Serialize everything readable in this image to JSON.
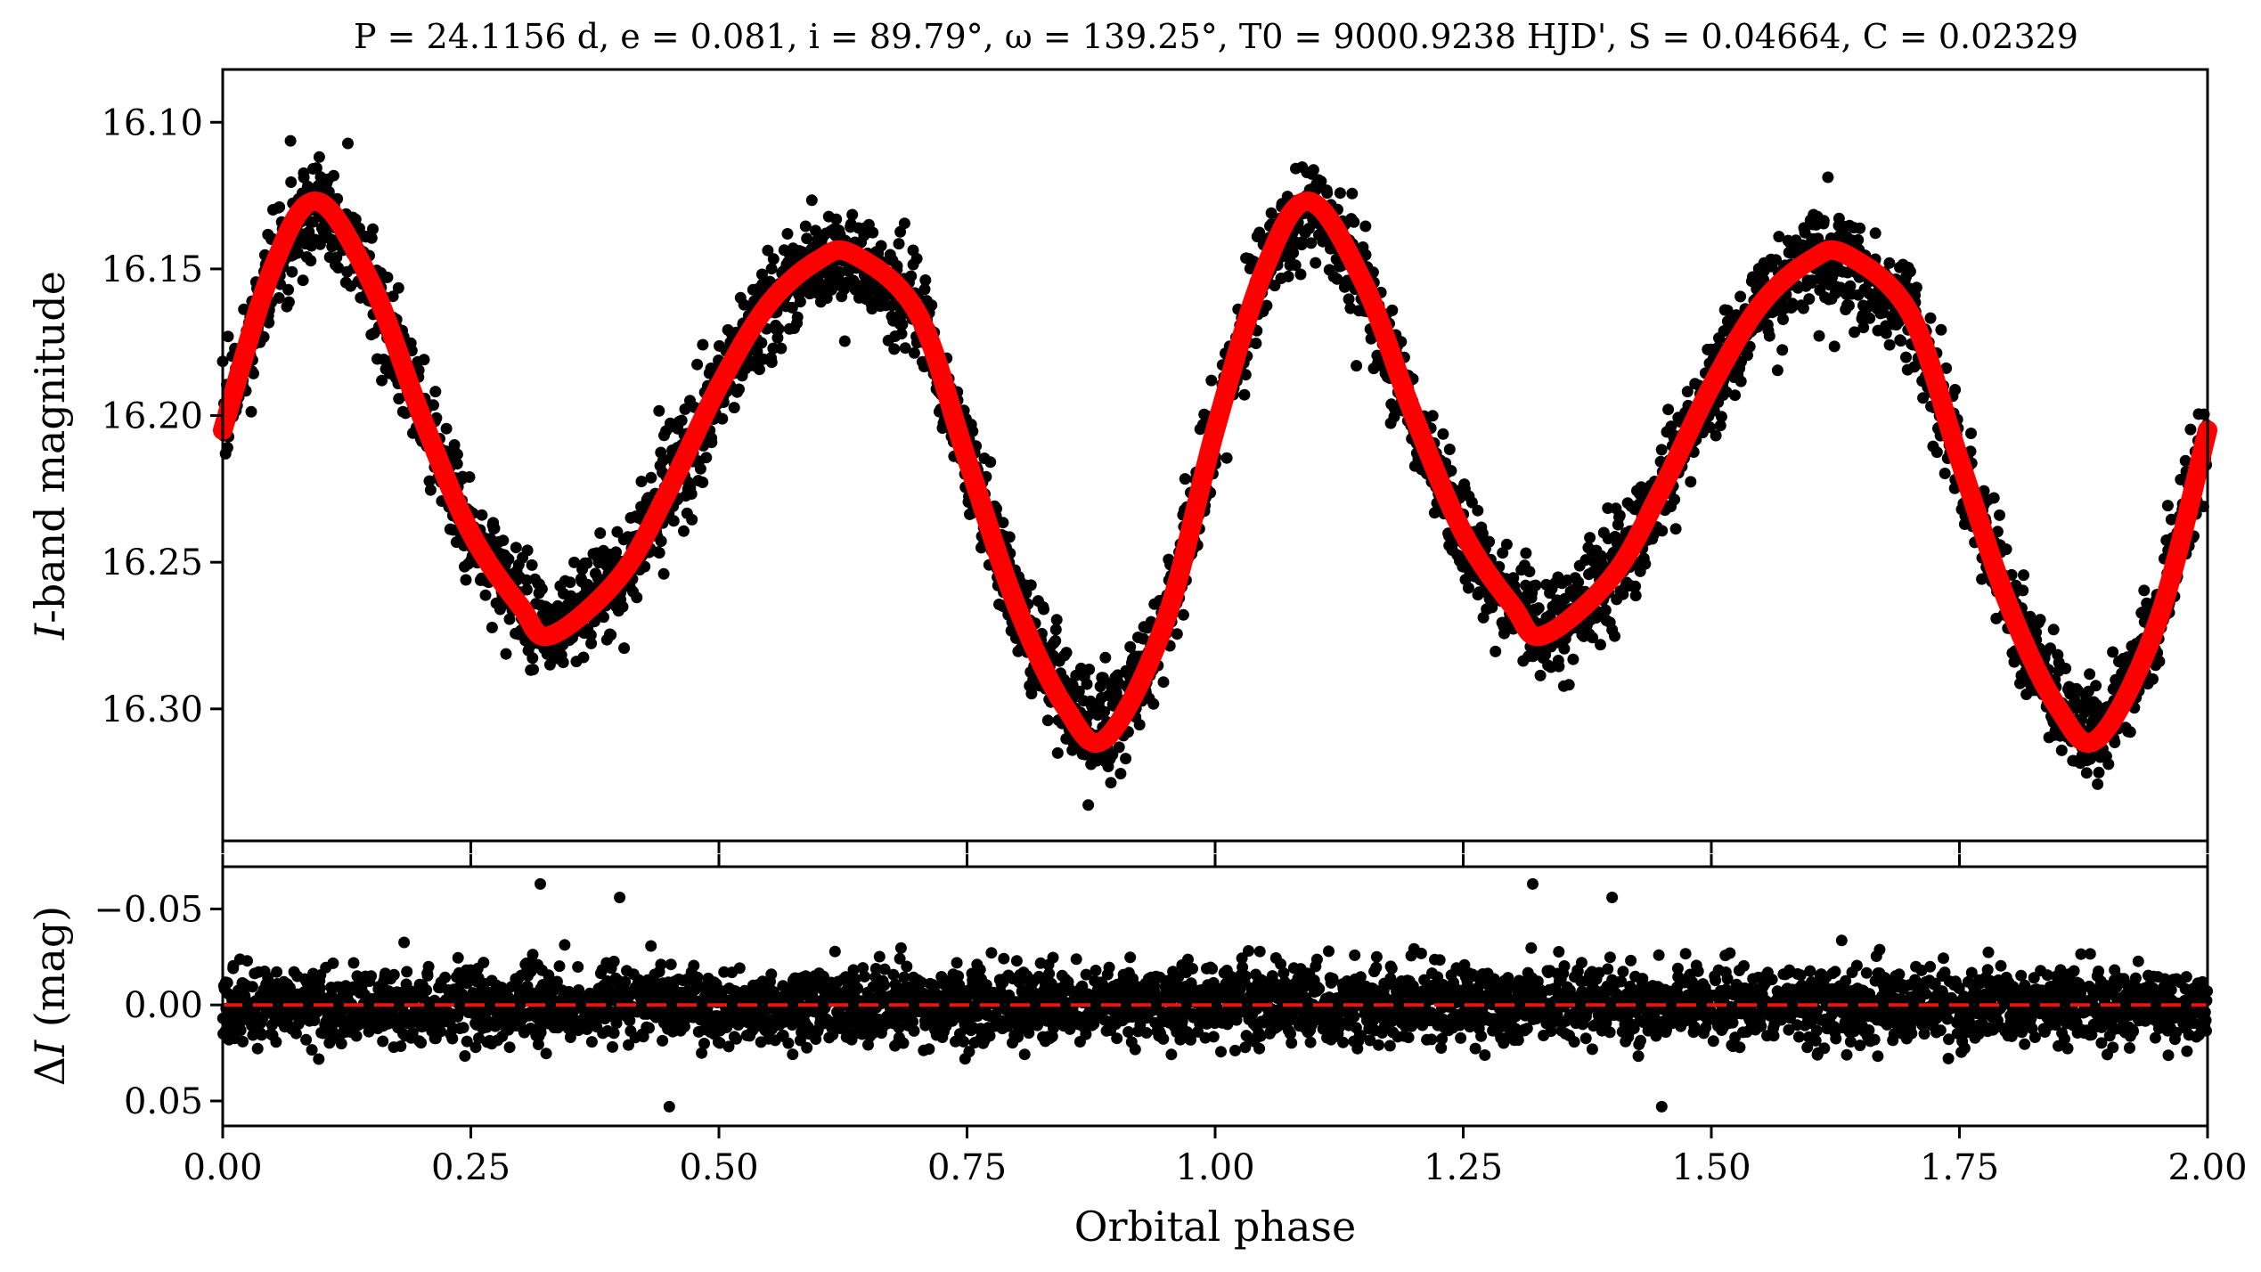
{
  "figure": {
    "title": "P = 24.1156 d, e = 0.081, i = 89.79°, ω = 139.25°, T0 = 9000.9238 HJD', S = 0.04664, C = 0.02329",
    "colors": {
      "data": "#000000",
      "model": "#ff0000",
      "axis": "#000000"
    }
  },
  "chart_data": [
    {
      "id": "light-curve",
      "type": "scatter",
      "title": "P = 24.1156 d, e = 0.081, i = 89.79°, ω = 139.25°, T0 = 9000.9238 HJD', S = 0.04664, C = 0.02329",
      "xlabel": "",
      "ylabel": "I-band magnitude",
      "xlim": [
        0.0,
        2.0
      ],
      "ylim": [
        16.345,
        16.082
      ],
      "y_inverted": true,
      "grid": false,
      "xticks": [
        0.0,
        0.25,
        0.5,
        0.75,
        1.0,
        1.25,
        1.5,
        1.75,
        2.0
      ],
      "yticks": [
        16.1,
        16.15,
        16.2,
        16.25,
        16.3
      ],
      "ytick_labels": [
        "16.10",
        "16.15",
        "16.20",
        "16.25",
        "16.30"
      ],
      "series": [
        {
          "kind": "points",
          "color": "#000000",
          "x": [
            0.0,
            0.05,
            0.095,
            0.15,
            0.2,
            0.25,
            0.3,
            0.33,
            0.4,
            0.45,
            0.5,
            0.55,
            0.6,
            0.635,
            0.7,
            0.75,
            0.8,
            0.85,
            0.89,
            0.95,
            1.0,
            1.05,
            1.095,
            1.15,
            1.2,
            1.25,
            1.3,
            1.33,
            1.4,
            1.45,
            1.5,
            1.55,
            1.6,
            1.635,
            1.7,
            1.75,
            1.8,
            1.85,
            1.89,
            1.95,
            2.0
          ],
          "y": [
            16.205,
            16.15,
            16.127,
            16.155,
            16.2,
            16.24,
            16.265,
            16.275,
            16.255,
            16.225,
            16.19,
            16.162,
            16.147,
            16.145,
            16.165,
            16.215,
            16.265,
            16.3,
            16.31,
            16.27,
            16.205,
            16.15,
            16.127,
            16.155,
            16.2,
            16.24,
            16.265,
            16.275,
            16.255,
            16.225,
            16.19,
            16.162,
            16.147,
            16.145,
            16.165,
            16.215,
            16.265,
            16.3,
            16.31,
            16.27,
            16.205
          ]
        },
        {
          "kind": "model-curve",
          "color": "#ff0000",
          "x": [
            0.0,
            0.05,
            0.095,
            0.15,
            0.2,
            0.25,
            0.3,
            0.33,
            0.4,
            0.45,
            0.5,
            0.55,
            0.6,
            0.635,
            0.7,
            0.75,
            0.8,
            0.85,
            0.89,
            0.95,
            1.0,
            1.05,
            1.095,
            1.15,
            1.2,
            1.25,
            1.3,
            1.33,
            1.4,
            1.45,
            1.5,
            1.55,
            1.6,
            1.635,
            1.7,
            1.75,
            1.8,
            1.85,
            1.89,
            1.95,
            2.0
          ],
          "y": [
            16.205,
            16.15,
            16.127,
            16.155,
            16.2,
            16.24,
            16.265,
            16.275,
            16.255,
            16.225,
            16.19,
            16.162,
            16.147,
            16.145,
            16.165,
            16.215,
            16.265,
            16.3,
            16.31,
            16.27,
            16.205,
            16.15,
            16.127,
            16.155,
            16.2,
            16.24,
            16.265,
            16.275,
            16.255,
            16.225,
            16.19,
            16.162,
            16.147,
            16.145,
            16.165,
            16.215,
            16.265,
            16.3,
            16.31,
            16.27,
            16.205
          ]
        }
      ]
    },
    {
      "id": "residuals",
      "type": "scatter",
      "xlabel": "Orbital phase",
      "ylabel": "ΔI (mag)",
      "xlim": [
        0.0,
        2.0
      ],
      "ylim": [
        0.063,
        -0.072
      ],
      "y_inverted": true,
      "grid": false,
      "xticks": [
        0.0,
        0.25,
        0.5,
        0.75,
        1.0,
        1.25,
        1.5,
        1.75,
        2.0
      ],
      "xtick_labels": [
        "0.00",
        "0.25",
        "0.50",
        "0.75",
        "1.00",
        "1.25",
        "1.50",
        "1.75",
        "2.00"
      ],
      "yticks": [
        -0.05,
        0.0,
        0.05
      ],
      "ytick_labels": [
        "−0.05",
        "0.00",
        "0.05"
      ],
      "series": [
        {
          "kind": "points",
          "color": "#000000",
          "x": [
            0.0,
            0.25,
            0.32,
            0.4,
            0.45,
            0.5,
            0.75,
            1.0,
            1.25,
            1.32,
            1.4,
            1.45,
            1.5,
            1.75,
            2.0
          ],
          "y": [
            0.0,
            0.0,
            -0.063,
            -0.056,
            0.053,
            0.0,
            0.0,
            0.0,
            0.0,
            -0.063,
            -0.056,
            0.053,
            0.0,
            0.0,
            0.0
          ]
        },
        {
          "kind": "zero-line",
          "color": "#e8150f",
          "style": "dashed",
          "y": 0.0
        }
      ]
    }
  ]
}
